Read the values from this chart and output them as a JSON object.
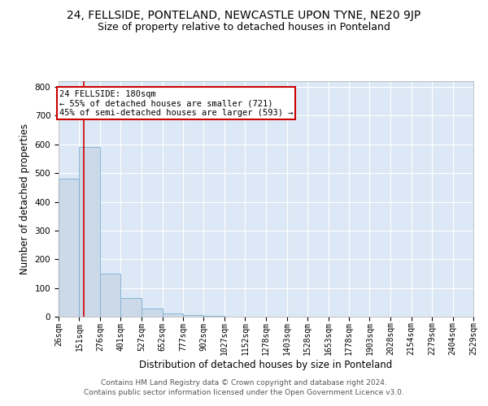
{
  "title": "24, FELLSIDE, PONTELAND, NEWCASTLE UPON TYNE, NE20 9JP",
  "subtitle": "Size of property relative to detached houses in Ponteland",
  "xlabel": "Distribution of detached houses by size in Ponteland",
  "ylabel": "Number of detached properties",
  "bar_values": [
    480,
    590,
    150,
    65,
    28,
    10,
    5,
    2,
    1,
    0,
    0,
    0,
    0,
    0,
    0,
    0,
    0,
    0,
    0,
    0
  ],
  "bin_edges": [
    26,
    151,
    276,
    401,
    527,
    652,
    777,
    902,
    1027,
    1152,
    1278,
    1403,
    1528,
    1653,
    1778,
    1903,
    2028,
    2154,
    2279,
    2404,
    2529
  ],
  "tick_labels": [
    "26sqm",
    "151sqm",
    "276sqm",
    "401sqm",
    "527sqm",
    "652sqm",
    "777sqm",
    "902sqm",
    "1027sqm",
    "1152sqm",
    "1278sqm",
    "1403sqm",
    "1528sqm",
    "1653sqm",
    "1778sqm",
    "1903sqm",
    "2028sqm",
    "2154sqm",
    "2279sqm",
    "2404sqm",
    "2529sqm"
  ],
  "bar_color": "#ccd9e8",
  "bar_edgecolor": "#7bafd4",
  "vline_x": 180,
  "vline_color": "#cc0000",
  "ylim": [
    0,
    820
  ],
  "annotation_text": "24 FELLSIDE: 180sqm\n← 55% of detached houses are smaller (721)\n45% of semi-detached houses are larger (593) →",
  "annotation_box_color": "#cc0000",
  "footer_line1": "Contains HM Land Registry data © Crown copyright and database right 2024.",
  "footer_line2": "Contains public sector information licensed under the Open Government Licence v3.0.",
  "plot_bg_color": "#dce8f5",
  "grid_color": "#ffffff",
  "title_fontsize": 10,
  "subtitle_fontsize": 9,
  "axis_label_fontsize": 8.5,
  "tick_fontsize": 7,
  "footer_fontsize": 6.5
}
